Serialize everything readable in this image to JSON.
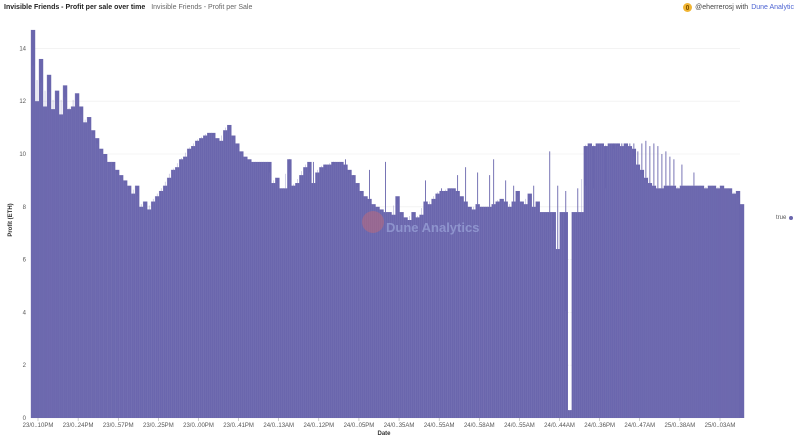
{
  "header": {
    "title": "Invisible Friends - Profit per sale over time",
    "subtitle": "Invisible Friends - Profit per Sale",
    "credit_user": "@eherrerosj with",
    "credit_brand": "Dune Analytic"
  },
  "watermark": "Dune Analytics",
  "chart_data": {
    "type": "bar",
    "title": "Invisible Friends - Profit per sale over time",
    "xlabel": "Date",
    "ylabel": "Profit (ETH)",
    "ylim": [
      0,
      15
    ],
    "yticks": [
      0,
      2,
      4,
      6,
      8,
      10,
      12,
      14
    ],
    "xtick_labels": [
      "23/0..10PM",
      "23/0..24PM",
      "23/0..57PM",
      "23/0..25PM",
      "23/0..00PM",
      "23/0..41PM",
      "24/0..13AM",
      "24/0..12PM",
      "24/0..05PM",
      "24/0..35AM",
      "24/0..55AM",
      "24/0..58AM",
      "24/0..55AM",
      "24/0..44AM",
      "24/0..36PM",
      "24/0..47AM",
      "25/0..38AM",
      "25/0..03AM"
    ],
    "grid": true,
    "legend": {
      "position": "right",
      "entries": [
        "true"
      ]
    },
    "color": "#6a66ad",
    "series": [
      {
        "name": "true",
        "x_positions": [
          0,
          2,
          4,
          6,
          8,
          10,
          12,
          14,
          16,
          18,
          20,
          22,
          24,
          26,
          28,
          30,
          32,
          34,
          36,
          38,
          40,
          42,
          44,
          46,
          48,
          50,
          52,
          54,
          56,
          58,
          60,
          62,
          64,
          66,
          68,
          70,
          72,
          74,
          76,
          78,
          80,
          82,
          84,
          86,
          88,
          90,
          92,
          94,
          96,
          98,
          100,
          102,
          104,
          106,
          108,
          110,
          112,
          114,
          116,
          118,
          120,
          122,
          124,
          126,
          128,
          130,
          132,
          134,
          136,
          138,
          140,
          142,
          144,
          146,
          148,
          150,
          152,
          154,
          156,
          158,
          160,
          162,
          164,
          166,
          168,
          170,
          172,
          174,
          176,
          178,
          180,
          182,
          184,
          186,
          188,
          190,
          192,
          194,
          196,
          198,
          200,
          202,
          204,
          206,
          208,
          210,
          212,
          214,
          216,
          218,
          220,
          222,
          224,
          226,
          228,
          230,
          232,
          234,
          236,
          238,
          240,
          242,
          244,
          246,
          248,
          250,
          252,
          254,
          256,
          258,
          260,
          262,
          264,
          266,
          268,
          270,
          272,
          274,
          276,
          278,
          280,
          282,
          284,
          286,
          288,
          290,
          292,
          294,
          296,
          298,
          300,
          302,
          304,
          306,
          308,
          310,
          312,
          314,
          316,
          318,
          320,
          322,
          324,
          326,
          328,
          330,
          332,
          334,
          336,
          338,
          340,
          342,
          344,
          346,
          348,
          350,
          352,
          354
        ],
        "values": [
          14.7,
          12.0,
          13.6,
          11.8,
          13.0,
          11.7,
          12.4,
          11.5,
          12.6,
          11.7,
          11.8,
          12.3,
          11.8,
          11.2,
          11.4,
          10.9,
          10.6,
          10.2,
          10.0,
          9.7,
          9.7,
          9.4,
          9.2,
          9.0,
          8.8,
          8.5,
          8.8,
          8.0,
          8.2,
          7.9,
          8.2,
          8.4,
          8.6,
          8.8,
          9.1,
          9.4,
          9.5,
          9.8,
          9.9,
          10.2,
          10.3,
          10.5,
          10.6,
          10.7,
          10.8,
          10.8,
          10.6,
          10.5,
          10.9,
          11.1,
          10.7,
          10.4,
          10.1,
          9.9,
          9.8,
          9.7,
          9.7,
          9.7,
          9.7,
          9.7,
          8.9,
          9.1,
          8.7,
          8.7,
          9.8,
          8.8,
          8.9,
          9.2,
          9.5,
          9.7,
          8.9,
          9.3,
          9.5,
          9.6,
          9.6,
          9.7,
          9.7,
          9.7,
          9.6,
          9.4,
          9.2,
          8.9,
          8.6,
          8.4,
          8.3,
          8.1,
          8.0,
          7.9,
          7.8,
          7.8,
          7.7,
          8.4,
          7.8,
          7.6,
          7.5,
          7.8,
          7.6,
          7.7,
          8.2,
          8.1,
          8.3,
          8.5,
          8.6,
          8.6,
          8.7,
          8.7,
          8.6,
          8.4,
          8.2,
          8.0,
          7.9,
          8.1,
          8.0,
          8.0,
          8.0,
          8.1,
          8.2,
          8.3,
          8.2,
          8.0,
          8.2,
          8.6,
          8.2,
          8.1,
          8.5,
          8.0,
          8.2,
          7.8,
          7.8,
          7.8,
          7.8,
          6.4,
          7.8,
          7.8,
          0.3,
          7.8,
          7.8,
          7.8,
          10.3,
          10.4,
          10.3,
          10.4,
          10.4,
          10.3,
          10.4,
          10.4,
          10.4,
          10.3,
          10.4,
          10.3,
          10.2,
          9.6,
          9.4,
          9.1,
          8.9,
          8.8,
          8.7,
          8.7,
          8.8,
          8.8,
          8.8,
          8.7,
          8.8,
          8.8,
          8.8,
          8.8,
          8.8,
          8.8,
          8.7,
          8.8,
          8.8,
          8.7,
          8.8,
          8.7,
          8.7,
          8.5,
          8.6,
          8.1
        ]
      }
    ],
    "spikes": [
      [
        300,
        10.4
      ],
      [
        302,
        10.1
      ],
      [
        306,
        10.5
      ],
      [
        310,
        10.4
      ],
      [
        314,
        10.0
      ],
      [
        318,
        9.9
      ],
      [
        128,
        9.6
      ],
      [
        134,
        9.2
      ],
      [
        140,
        9.7
      ],
      [
        146,
        9.4
      ],
      [
        150,
        9.6
      ],
      [
        154,
        9.7
      ],
      [
        156,
        9.8
      ],
      [
        160,
        9.1
      ],
      [
        168,
        9.4
      ],
      [
        176,
        9.7
      ],
      [
        196,
        9.0
      ],
      [
        204,
        8.7
      ],
      [
        212,
        9.2
      ],
      [
        216,
        9.5
      ],
      [
        222,
        9.3
      ],
      [
        228,
        9.2
      ],
      [
        230,
        9.8
      ],
      [
        236,
        9.0
      ],
      [
        240,
        8.8
      ],
      [
        250,
        8.8
      ],
      [
        258,
        10.1
      ],
      [
        262,
        8.8
      ],
      [
        266,
        8.6
      ],
      [
        272,
        8.7
      ],
      [
        276,
        8.8
      ],
      [
        280,
        8.7
      ],
      [
        286,
        8.7
      ],
      [
        290,
        10.2
      ],
      [
        292,
        10.3
      ],
      [
        294,
        10.4
      ],
      [
        296,
        10.4
      ],
      [
        298,
        10.4
      ],
      [
        304,
        10.4
      ],
      [
        308,
        10.3
      ],
      [
        312,
        10.3
      ],
      [
        316,
        10.1
      ],
      [
        320,
        9.8
      ],
      [
        324,
        9.6
      ],
      [
        330,
        9.3
      ]
    ]
  }
}
